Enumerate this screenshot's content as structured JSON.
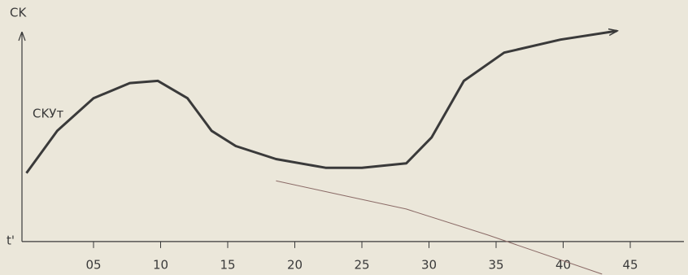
{
  "chart_data": {
    "type": "line",
    "y_label": "CK",
    "x_label": "t'",
    "annotation": "CKУт",
    "x": [
      0,
      2.3,
      5,
      7.7,
      9.8,
      12,
      13.8,
      15.6,
      18.6,
      22.3,
      25,
      28.3,
      30.2,
      32.6,
      35.6,
      39.8,
      44
    ],
    "series": [
      {
        "name": "CKУт",
        "color": "#3a3a3a",
        "values": [
          31.5,
          51,
          66,
          73,
          74,
          66,
          51,
          44,
          38,
          34,
          34,
          36,
          48,
          74,
          87,
          93,
          97
        ]
      },
      {
        "color": "#8a6a66",
        "x": [
          18.6,
          22.3,
          28.3,
          34.4,
          42.9
        ],
        "values": [
          28,
          23,
          15,
          3,
          -15
        ]
      }
    ],
    "xlim": [
      0,
      49
    ],
    "ylim": [
      -15.4,
      100
    ],
    "xticks": [
      {
        "value": 5,
        "label": "05"
      },
      10,
      15,
      20,
      25,
      30,
      35,
      40,
      45
    ]
  }
}
